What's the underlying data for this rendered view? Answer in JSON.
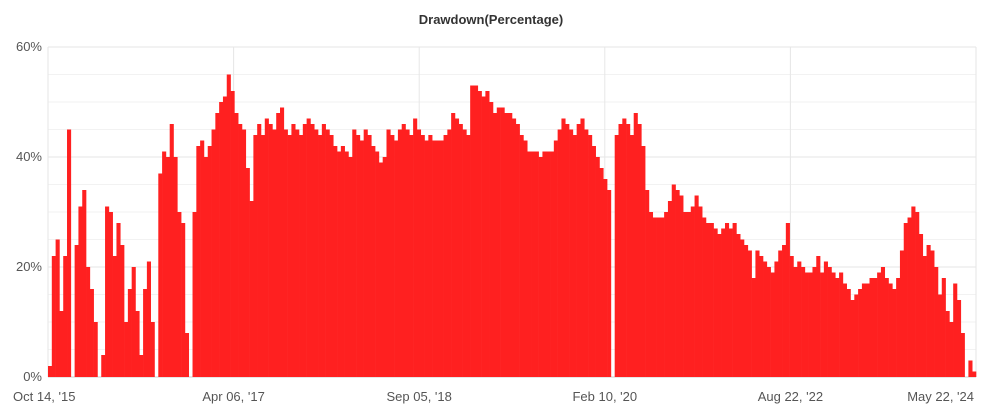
{
  "chart_data": {
    "type": "bar",
    "title": "Drawdown(Percentage)",
    "xlabel": "",
    "ylabel": "",
    "ylim": [
      0,
      60
    ],
    "y_tick_values": [
      0,
      20,
      40,
      60
    ],
    "y_tick_labels": [
      "0%",
      "20%",
      "40%",
      "60%"
    ],
    "x_tick_labels": [
      "Oct 14, '15",
      "Apr 06, '17",
      "Sep 05, '18",
      "Feb 10, '20",
      "Aug 22, '22",
      "May 22, '24"
    ],
    "grid": true,
    "legend": "none",
    "bar_color": "#ff2020",
    "grid_color": "#e6e6e6",
    "values": [
      2,
      22,
      25,
      12,
      22,
      45,
      0,
      24,
      31,
      34,
      20,
      16,
      10,
      0,
      4,
      31,
      30,
      22,
      28,
      24,
      10,
      16,
      20,
      12,
      4,
      16,
      21,
      10,
      0,
      37,
      41,
      40,
      46,
      40,
      30,
      28,
      8,
      0,
      30,
      42,
      43,
      40,
      42,
      45,
      48,
      50,
      51,
      55,
      52,
      48,
      46,
      45,
      38,
      32,
      44,
      46,
      44,
      47,
      46,
      45,
      48,
      49,
      45,
      44,
      46,
      45,
      44,
      46,
      47,
      46,
      45,
      44,
      46,
      45,
      44,
      42,
      41,
      42,
      41,
      40,
      45,
      44,
      43,
      45,
      44,
      42,
      41,
      39,
      40,
      45,
      44,
      43,
      45,
      46,
      45,
      44,
      47,
      45,
      44,
      43,
      44,
      43,
      43,
      43,
      44,
      45,
      48,
      47,
      46,
      45,
      44,
      53,
      53,
      52,
      51,
      52,
      50,
      48,
      49,
      49,
      48,
      48,
      47,
      46,
      44,
      43,
      41,
      41,
      41,
      40,
      41,
      41,
      41,
      43,
      45,
      47,
      46,
      45,
      44,
      46,
      47,
      45,
      44,
      42,
      40,
      38,
      36,
      34,
      0,
      44,
      46,
      47,
      46,
      44,
      48,
      46,
      42,
      34,
      30,
      29,
      29,
      29,
      30,
      32,
      35,
      34,
      33,
      30,
      30,
      31,
      33,
      31,
      29,
      28,
      28,
      27,
      26,
      27,
      28,
      27,
      28,
      26,
      25,
      24,
      23,
      18,
      23,
      22,
      21,
      20,
      19,
      21,
      23,
      24,
      28,
      22,
      20,
      21,
      20,
      19,
      19,
      20,
      22,
      19,
      21,
      20,
      19,
      18,
      19,
      17,
      16,
      14,
      15,
      16,
      17,
      17,
      18,
      18,
      19,
      20,
      18,
      17,
      16,
      18,
      23,
      28,
      29,
      31,
      30,
      26,
      22,
      24,
      23,
      20,
      15,
      18,
      12,
      10,
      17,
      14,
      8,
      0,
      3,
      1
    ]
  }
}
